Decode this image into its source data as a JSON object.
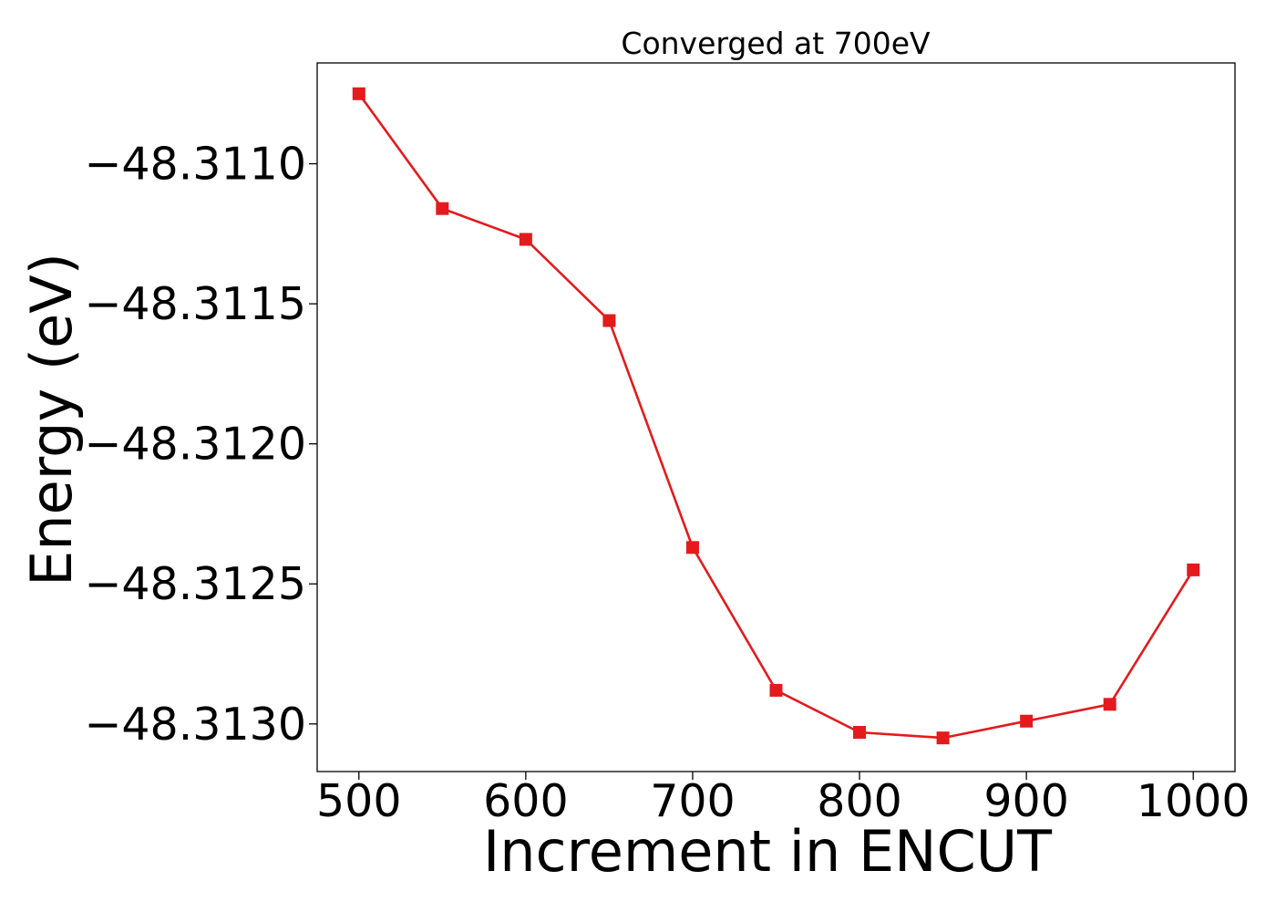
{
  "chart_data": {
    "type": "line",
    "title": "Converged at 700eV",
    "xlabel": "Increment in ENCUT",
    "ylabel": "Energy (eV)",
    "xlim": [
      475,
      1025
    ],
    "ylim": [
      -48.31317,
      -48.31064
    ],
    "x_ticks": [
      500,
      600,
      700,
      800,
      900,
      1000
    ],
    "x_tick_labels": [
      "500",
      "600",
      "700",
      "800",
      "900",
      "1000"
    ],
    "y_ticks": [
      -48.311,
      -48.3115,
      -48.312,
      -48.3125,
      -48.313
    ],
    "y_tick_labels": [
      "−48.3110",
      "−48.3115",
      "−48.3120",
      "−48.3125",
      "−48.3130"
    ],
    "grid": false,
    "marker": "square",
    "color": "#e41a1c",
    "series": [
      {
        "x": [
          500,
          550,
          600,
          650,
          700,
          750,
          800,
          850,
          900,
          950,
          1000
        ],
        "values": [
          -48.31075,
          -48.31116,
          -48.31127,
          -48.31156,
          -48.31237,
          -48.31288,
          -48.31303,
          -48.31305,
          -48.31299,
          -48.31293,
          -48.31245
        ]
      }
    ]
  }
}
